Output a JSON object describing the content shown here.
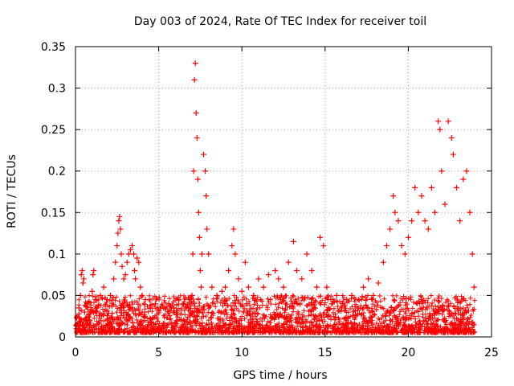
{
  "chart_data": {
    "type": "scatter",
    "title": "Day 003 of 2024, Rate Of TEC Index for receiver toil",
    "xlabel": "GPS time / hours",
    "ylabel": "ROTI / TECUs",
    "xlim": [
      0,
      25
    ],
    "ylim": [
      0,
      0.35
    ],
    "x_ticks": [
      0,
      5,
      10,
      15,
      20,
      25
    ],
    "x_tick_labels": [
      "0",
      "5",
      "10",
      "15",
      "20",
      "25"
    ],
    "y_ticks": [
      0,
      0.05,
      0.1,
      0.15,
      0.2,
      0.25,
      0.3,
      0.35
    ],
    "y_tick_labels": [
      "0",
      "0.05",
      "0.1",
      "0.15",
      "0.2",
      "0.25",
      "0.3",
      "0.35"
    ],
    "grid": true,
    "marker": "+",
    "marker_color": "#ff0000",
    "series": [
      {
        "name": "ROTI",
        "points": [
          [
            0.05,
            0.01
          ],
          [
            0.1,
            0.025
          ],
          [
            0.2,
            0.035
          ],
          [
            0.3,
            0.05
          ],
          [
            0.35,
            0.075
          ],
          [
            0.4,
            0.08
          ],
          [
            0.45,
            0.065
          ],
          [
            0.5,
            0.07
          ],
          [
            0.55,
            0.03
          ],
          [
            0.7,
            0.04
          ],
          [
            0.85,
            0.02
          ],
          [
            1.0,
            0.055
          ],
          [
            1.05,
            0.075
          ],
          [
            1.1,
            0.08
          ],
          [
            1.2,
            0.045
          ],
          [
            1.3,
            0.035
          ],
          [
            1.5,
            0.05
          ],
          [
            1.7,
            0.06
          ],
          [
            1.9,
            0.045
          ],
          [
            2.1,
            0.05
          ],
          [
            2.3,
            0.07
          ],
          [
            2.4,
            0.09
          ],
          [
            2.5,
            0.11
          ],
          [
            2.55,
            0.125
          ],
          [
            2.6,
            0.14
          ],
          [
            2.65,
            0.145
          ],
          [
            2.7,
            0.13
          ],
          [
            2.75,
            0.1
          ],
          [
            2.8,
            0.085
          ],
          [
            2.9,
            0.07
          ],
          [
            3.0,
            0.075
          ],
          [
            3.1,
            0.09
          ],
          [
            3.2,
            0.1
          ],
          [
            3.3,
            0.105
          ],
          [
            3.4,
            0.11
          ],
          [
            3.5,
            0.1
          ],
          [
            3.55,
            0.08
          ],
          [
            3.6,
            0.07
          ],
          [
            3.7,
            0.095
          ],
          [
            3.8,
            0.09
          ],
          [
            3.9,
            0.06
          ],
          [
            4.0,
            0.05
          ],
          [
            4.2,
            0.045
          ],
          [
            4.5,
            0.035
          ],
          [
            4.8,
            0.04
          ],
          [
            5.0,
            0.03
          ],
          [
            5.3,
            0.035
          ],
          [
            5.6,
            0.04
          ],
          [
            5.9,
            0.035
          ],
          [
            6.2,
            0.045
          ],
          [
            6.5,
            0.04
          ],
          [
            6.8,
            0.035
          ],
          [
            7.0,
            0.05
          ],
          [
            7.05,
            0.1
          ],
          [
            7.1,
            0.2
          ],
          [
            7.15,
            0.31
          ],
          [
            7.2,
            0.33
          ],
          [
            7.25,
            0.27
          ],
          [
            7.3,
            0.24
          ],
          [
            7.35,
            0.19
          ],
          [
            7.4,
            0.15
          ],
          [
            7.45,
            0.12
          ],
          [
            7.5,
            0.08
          ],
          [
            7.55,
            0.06
          ],
          [
            7.6,
            0.1
          ],
          [
            7.7,
            0.22
          ],
          [
            7.8,
            0.2
          ],
          [
            7.85,
            0.17
          ],
          [
            7.9,
            0.13
          ],
          [
            8.0,
            0.1
          ],
          [
            8.2,
            0.06
          ],
          [
            8.5,
            0.05
          ],
          [
            8.8,
            0.055
          ],
          [
            9.0,
            0.06
          ],
          [
            9.2,
            0.08
          ],
          [
            9.4,
            0.11
          ],
          [
            9.5,
            0.13
          ],
          [
            9.6,
            0.1
          ],
          [
            9.8,
            0.07
          ],
          [
            10.0,
            0.055
          ],
          [
            10.2,
            0.09
          ],
          [
            10.4,
            0.06
          ],
          [
            10.7,
            0.05
          ],
          [
            11.0,
            0.07
          ],
          [
            11.3,
            0.06
          ],
          [
            11.6,
            0.075
          ],
          [
            12.0,
            0.08
          ],
          [
            12.2,
            0.07
          ],
          [
            12.5,
            0.06
          ],
          [
            12.8,
            0.09
          ],
          [
            13.1,
            0.115
          ],
          [
            13.3,
            0.08
          ],
          [
            13.6,
            0.07
          ],
          [
            13.9,
            0.1
          ],
          [
            14.2,
            0.08
          ],
          [
            14.5,
            0.06
          ],
          [
            14.7,
            0.12
          ],
          [
            14.9,
            0.11
          ],
          [
            15.1,
            0.06
          ],
          [
            15.4,
            0.04
          ],
          [
            15.7,
            0.05
          ],
          [
            16.0,
            0.035
          ],
          [
            16.3,
            0.045
          ],
          [
            16.6,
            0.05
          ],
          [
            17.0,
            0.045
          ],
          [
            17.3,
            0.06
          ],
          [
            17.6,
            0.07
          ],
          [
            17.9,
            0.05
          ],
          [
            18.2,
            0.065
          ],
          [
            18.5,
            0.09
          ],
          [
            18.7,
            0.11
          ],
          [
            18.9,
            0.13
          ],
          [
            19.1,
            0.17
          ],
          [
            19.2,
            0.15
          ],
          [
            19.4,
            0.14
          ],
          [
            19.6,
            0.11
          ],
          [
            19.8,
            0.1
          ],
          [
            20.0,
            0.12
          ],
          [
            20.2,
            0.14
          ],
          [
            20.4,
            0.18
          ],
          [
            20.6,
            0.15
          ],
          [
            20.8,
            0.17
          ],
          [
            21.0,
            0.14
          ],
          [
            21.2,
            0.13
          ],
          [
            21.4,
            0.18
          ],
          [
            21.6,
            0.15
          ],
          [
            21.8,
            0.26
          ],
          [
            21.9,
            0.25
          ],
          [
            22.0,
            0.2
          ],
          [
            22.2,
            0.16
          ],
          [
            22.4,
            0.26
          ],
          [
            22.6,
            0.24
          ],
          [
            22.7,
            0.22
          ],
          [
            22.9,
            0.18
          ],
          [
            23.1,
            0.14
          ],
          [
            23.3,
            0.19
          ],
          [
            23.5,
            0.2
          ],
          [
            23.7,
            0.15
          ],
          [
            23.85,
            0.1
          ],
          [
            23.95,
            0.06
          ]
        ]
      }
    ]
  }
}
